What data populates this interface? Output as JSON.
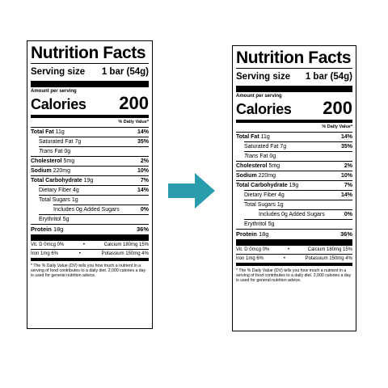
{
  "label": {
    "title": "Nutrition Facts",
    "serving_label": "Serving size",
    "serving_value": "1 bar (54g)",
    "amount_per_serving": "Amount per serving",
    "calories_label": "Calories",
    "calories_value": "200",
    "daily_value_header": "% Daily Value*",
    "rows": [
      {
        "name": "Total Fat",
        "amount": "11g",
        "dv": "14%"
      },
      {
        "name": "Saturated Fat",
        "amount": "7g",
        "dv": "35%"
      },
      {
        "name_italic": "Trans",
        "name": "Fat",
        "amount": "0g",
        "dv": ""
      },
      {
        "name": "Cholesterol",
        "amount": "5mg",
        "dv": "2%"
      },
      {
        "name": "Sodium",
        "amount": "220mg",
        "dv": "10%"
      },
      {
        "name": "Total Carbohydrate",
        "amount": "19g",
        "dv": "7%"
      },
      {
        "name": "Dietary Fiber",
        "amount": "4g",
        "dv": "14%"
      },
      {
        "name": "Total Sugars",
        "amount": "1g",
        "dv": ""
      },
      {
        "name": "Includes 0g Added Sugars",
        "amount": "",
        "dv": "0%"
      },
      {
        "name": "Erythritol",
        "amount": "5g",
        "dv": ""
      },
      {
        "name": "Protein",
        "amount": "18g",
        "dv": "36%"
      }
    ],
    "vitamins": {
      "vit_d": "Vit. D 0mcg 0%",
      "calcium": "Calcium 180mg 15%",
      "iron": "Iron 1mg 6%",
      "potassium": "Potassium 150mg 4%",
      "separator": "•"
    },
    "footnote": "* The % Daily Value (DV) tells you how much a nutrient in a serving of food contributes to a daily diet. 2,000 calories a day is used for general nutrition advice."
  },
  "arrow": {
    "icon": "right-arrow-icon",
    "color": "#2a9dad"
  }
}
